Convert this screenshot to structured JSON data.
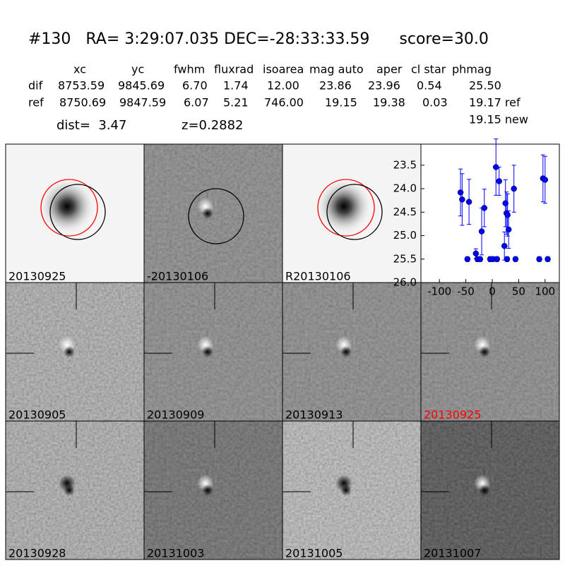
{
  "header": {
    "title": "#130   RA= 3:29:07.035 DEC=-28:33:33.59      score=30.0"
  },
  "table": {
    "header": [
      "xc",
      "yc",
      "fwhm",
      "fluxrad",
      "isoarea",
      "mag auto",
      "aper",
      "cl star",
      "phmag"
    ],
    "rows": [
      [
        "dif",
        "8753.59",
        "9845.69",
        "6.70",
        "1.74",
        "12.00",
        "23.86",
        "23.96",
        "0.54",
        "25.50"
      ],
      [
        "ref",
        "8750.69",
        "9847.59",
        "6.07",
        "5.21",
        "746.00",
        "19.15",
        "19.38",
        "0.03",
        "19.17 ref"
      ]
    ],
    "extra": "19.15 new",
    "dist": "dist=  3.47",
    "z": "z=0.2882"
  },
  "panels": [
    {
      "label": "20130925"
    },
    {
      "label": "-20130106"
    },
    {
      "label": "R20130106"
    },
    {
      "label": "20130905"
    },
    {
      "label": "20130909"
    },
    {
      "label": "20130913"
    },
    {
      "label": "20130925",
      "color": "#ff0000"
    },
    {
      "label": "20130928"
    },
    {
      "label": "20131003"
    },
    {
      "label": "20131005"
    },
    {
      "label": "20131007"
    }
  ],
  "chart_data": {
    "type": "errorbar",
    "xlim": [
      -135,
      127
    ],
    "xticks": [
      -100,
      -50,
      0,
      50,
      100
    ],
    "ylim": [
      26.0,
      23.05
    ],
    "yticks": [
      23.5,
      {
        "value": 24,
        "label": "24.0"
      },
      24.5,
      {
        "value": 25,
        "label": "25.0"
      },
      25.5,
      {
        "value": 26,
        "label": "26.0"
      }
    ],
    "series": [
      {
        "color": "#0000ff",
        "x": [
          -60,
          -57,
          -44,
          -47,
          -31,
          -28,
          -23,
          -20,
          -15,
          -4,
          1,
          7,
          13,
          9,
          23,
          25,
          27,
          29,
          31,
          28,
          41,
          44,
          89,
          96,
          100,
          105
        ],
        "values": [
          24.08,
          24.23,
          24.28,
          25.5,
          25.38,
          25.5,
          25.5,
          24.91,
          24.41,
          25.5,
          25.5,
          23.54,
          23.84,
          25.5,
          25.22,
          24.31,
          24.52,
          24.56,
          24.87,
          25.5,
          24.0,
          25.5,
          25.5,
          23.78,
          23.81,
          25.5
        ],
        "errors": [
          0.5,
          0.55,
          0.48,
          0.05,
          0.1,
          0.05,
          0.05,
          0.5,
          0.4,
          0.05,
          0.05,
          0.6,
          0.3,
          0.05,
          0.3,
          0.5,
          0.45,
          0.45,
          0.4,
          0.05,
          0.5,
          0.05,
          0.05,
          0.5,
          0.5,
          0.05
        ]
      }
    ]
  }
}
